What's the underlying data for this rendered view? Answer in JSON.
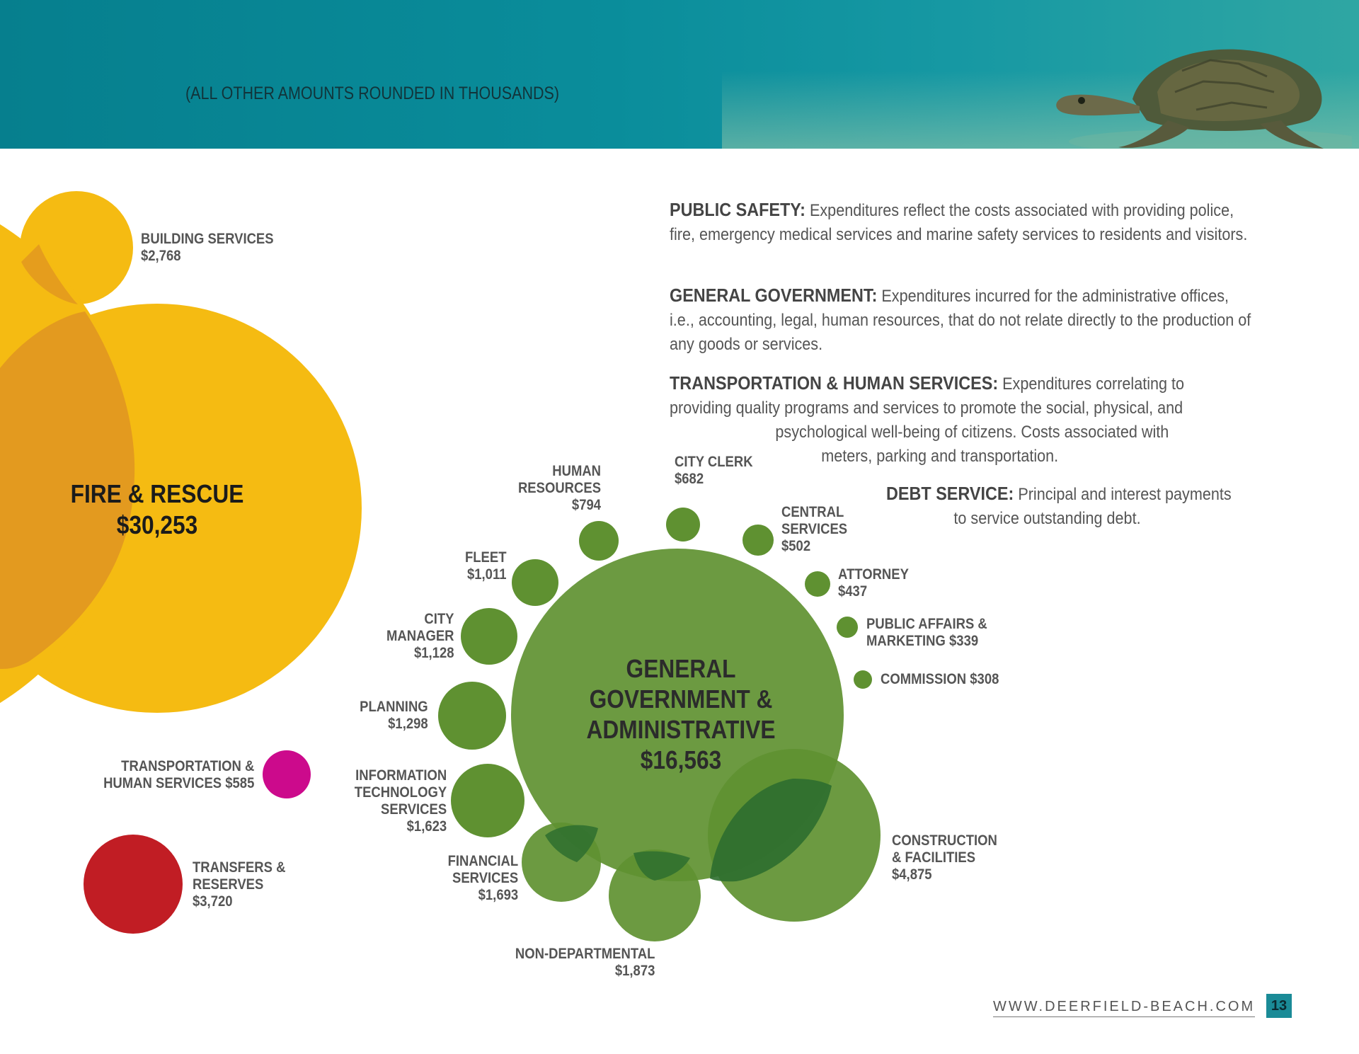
{
  "header": {
    "caption": "(ALL OTHER AMOUNTS ROUNDED IN THOUSANDS)"
  },
  "colors": {
    "public_safety": "#f5bb12",
    "overlap": "#e39a1f",
    "general_government": "#5f9131",
    "general_government_overlap": "#2e6e2f",
    "transportation": "#cc0a8c",
    "transfers": "#c11d24",
    "banner": "#0a8d9b"
  },
  "chart_data": {
    "type": "bubble",
    "unit": "thousands",
    "bubbles": [
      {
        "key": "fire",
        "label": "FIRE & RESCUE",
        "amount": "$30,253",
        "value": 30253,
        "group": "public_safety"
      },
      {
        "key": "building",
        "label": "BUILDING SERVICES",
        "amount": "$2,768",
        "value": 2768,
        "group": "public_safety"
      },
      {
        "key": "general",
        "label": "GENERAL GOVERNMENT & ADMINISTRATIVE",
        "amount": "$16,563",
        "value": 16563,
        "group": "general_government"
      },
      {
        "key": "construction",
        "label": "CONSTRUCTION & FACILITIES",
        "amount": "$4,875",
        "value": 4875,
        "group": "general_government"
      },
      {
        "key": "nondept",
        "label": "NON-DEPARTMENTAL",
        "amount": "$1,873",
        "value": 1873,
        "group": "general_government"
      },
      {
        "key": "financial",
        "label": "FINANCIAL SERVICES",
        "amount": "$1,693",
        "value": 1693,
        "group": "general_government"
      },
      {
        "key": "it",
        "label": "INFORMATION TECHNOLOGY SERVICES",
        "amount": "$1,623",
        "value": 1623,
        "group": "general_government"
      },
      {
        "key": "planning",
        "label": "PLANNING",
        "amount": "$1,298",
        "value": 1298,
        "group": "general_government"
      },
      {
        "key": "manager",
        "label": "CITY MANAGER",
        "amount": "$1,128",
        "value": 1128,
        "group": "general_government"
      },
      {
        "key": "fleet",
        "label": "FLEET",
        "amount": "$1,011",
        "value": 1011,
        "group": "general_government"
      },
      {
        "key": "hr",
        "label": "HUMAN RESOURCES",
        "amount": "$794",
        "value": 794,
        "group": "general_government"
      },
      {
        "key": "clerk",
        "label": "CITY CLERK",
        "amount": "$682",
        "value": 682,
        "group": "general_government"
      },
      {
        "key": "central",
        "label": "CENTRAL SERVICES",
        "amount": "$502",
        "value": 502,
        "group": "general_government"
      },
      {
        "key": "attorney",
        "label": "ATTORNEY",
        "amount": "$437",
        "value": 437,
        "group": "general_government"
      },
      {
        "key": "pam",
        "label": "PUBLIC AFFAIRS & MARKETING",
        "amount": "$339",
        "value": 339,
        "group": "general_government"
      },
      {
        "key": "commission",
        "label": "COMMISSION",
        "amount": "$308",
        "value": 308,
        "group": "general_government"
      },
      {
        "key": "transport",
        "label": "TRANSPORTATION & HUMAN SERVICES",
        "amount": "$585",
        "value": 585,
        "group": "transportation"
      },
      {
        "key": "transfers",
        "label": "TRANSFERS & RESERVES",
        "amount": "$3,720",
        "value": 3720,
        "group": "transfers"
      }
    ]
  },
  "labels": {
    "building": [
      "BUILDING SERVICES",
      "$2,768"
    ],
    "fire": [
      "FIRE & RESCUE",
      "$30,253"
    ],
    "general": [
      "GENERAL",
      "GOVERNMENT &",
      "ADMINISTRATIVE",
      "$16,563"
    ],
    "hr": [
      "HUMAN",
      "RESOURCES",
      "$794"
    ],
    "clerk": [
      "CITY CLERK",
      "$682"
    ],
    "central": [
      "CENTRAL",
      "SERVICES",
      "$502"
    ],
    "fleet": [
      "FLEET",
      "$1,011"
    ],
    "attorney": [
      "ATTORNEY",
      "$437"
    ],
    "pam": [
      "PUBLIC AFFAIRS &",
      "MARKETING $339"
    ],
    "manager": [
      "CITY",
      "MANAGER",
      "$1,128"
    ],
    "commission": [
      "COMMISSION $308"
    ],
    "planning": [
      "PLANNING",
      "$1,298"
    ],
    "transport": [
      "TRANSPORTATION &",
      "HUMAN SERVICES $585"
    ],
    "it": [
      "INFORMATION",
      "TECHNOLOGY",
      "SERVICES",
      "$1,623"
    ],
    "construction": [
      "CONSTRUCTION",
      "& FACILITIES",
      "$4,875"
    ],
    "financial": [
      "FINANCIAL",
      "SERVICES",
      "$1,693"
    ],
    "transfers": [
      "TRANSFERS &",
      "RESERVES",
      "$3,720"
    ],
    "nondept": [
      "NON-DEPARTMENTAL",
      "$1,873"
    ]
  },
  "descriptions": {
    "public_safety": {
      "term": "PUBLIC SAFETY:",
      "text": "Expenditures reflect the costs associated with providing police, fire, emergency medical services and marine safety services to residents and visitors."
    },
    "general_government": {
      "term": "GENERAL GOVERNMENT:",
      "text": "Expenditures incurred for the administrative offices, i.e., accounting, legal, human resources, that do not relate directly to the production of any goods or services."
    },
    "transportation": {
      "term": "TRANSPORTATION & HUMAN SERVICES:",
      "text_line1": "Expenditures correlating to",
      "text_line2": "providing quality programs and services to promote the social, physical, and",
      "text_line3": "psychological well-being of citizens. Costs associated with",
      "text_line4": "meters, parking and transportation."
    },
    "debt_service": {
      "term": "DEBT SERVICE:",
      "text_line1": "Principal and interest payments",
      "text_line2": "to service outstanding debt."
    }
  },
  "footer": {
    "url": "WWW.DEERFIELD-BEACH.COM",
    "page_number": "13"
  }
}
